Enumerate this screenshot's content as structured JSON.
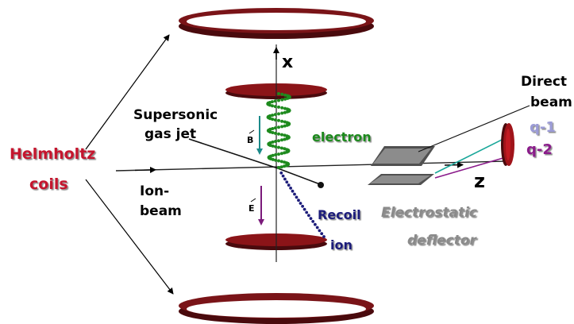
{
  "labels": {
    "helmholtz_line1": "Helmholtz",
    "helmholtz_line2": "coils",
    "axis_x": "x",
    "axis_z": "z",
    "gas_jet_line1": "Supersonic",
    "gas_jet_line2": "gas jet",
    "ion_beam_line1": "Ion-",
    "ion_beam_line2": "beam",
    "b_field": "B",
    "e_field": "E",
    "electron": "electron",
    "recoil_line1": "Recoil",
    "recoil_line2": "ion",
    "direct_beam_line1": "Direct",
    "direct_beam_line2": "beam",
    "charge_q1": "q-1",
    "charge_q2": "q-2",
    "deflector_line1": "Electrostatic",
    "deflector_line2": "deflector"
  },
  "colors": {
    "coil": "#7a1418",
    "coil_dark": "#4a0a0d",
    "helmholtz_text": "#c4142e",
    "electron": "#1e8a1e",
    "recoil": "#1c1c7a",
    "b_arrow": "#1c8a8a",
    "e_arrow": "#7a1a7a",
    "q1_text": "#9b9bd6",
    "q1_line": "#1aa79a",
    "q2_text": "#8a1a8a",
    "q2_line": "#8a1a8a",
    "deflector": "#707070",
    "deflector_text": "#8a8a8a"
  }
}
